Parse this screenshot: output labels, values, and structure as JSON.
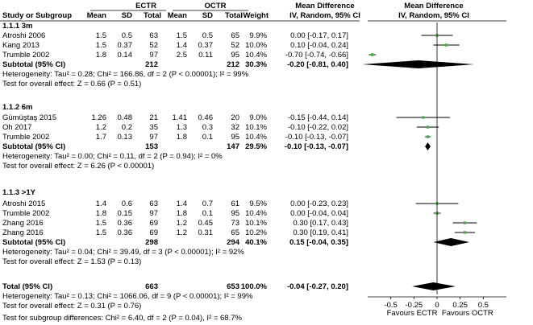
{
  "chart_data": {
    "type": "forest",
    "headers": {
      "group_ectr": "ECTR",
      "group_octr": "OCTR",
      "study": "Study or Subgroup",
      "mean": "Mean",
      "sd": "SD",
      "total": "Total",
      "weight": "Weight",
      "effect_title": "Mean Difference",
      "effect_sub": "IV, Random, 95% CI",
      "plot_title": "Mean Difference",
      "plot_sub": "IV, Random, 95% CI"
    },
    "subgroups": [
      {
        "name": "1.1.1 3m",
        "studies": [
          {
            "study": "Atroshi 2006",
            "m1": "1.5",
            "sd1": "0.5",
            "n1": "63",
            "m2": "1.5",
            "sd2": "0.5",
            "n2": "65",
            "weight": "9.9%",
            "ci_text": "0.00 [-0.17, 0.17]",
            "md": 0.0,
            "lo": -0.17,
            "hi": 0.17,
            "w": 9.9
          },
          {
            "study": "Kang 2013",
            "m1": "1.5",
            "sd1": "0.37",
            "n1": "52",
            "m2": "1.4",
            "sd2": "0.37",
            "n2": "52",
            "weight": "10.0%",
            "ci_text": "0.10 [-0.04, 0.24]",
            "md": 0.1,
            "lo": -0.04,
            "hi": 0.24,
            "w": 10.0
          },
          {
            "study": "Trumble 2002",
            "m1": "1.8",
            "sd1": "0.14",
            "n1": "97",
            "m2": "2.5",
            "sd2": "0.11",
            "n2": "95",
            "weight": "10.4%",
            "ci_text": "-0.70 [-0.74, -0.66]",
            "md": -0.7,
            "lo": -0.74,
            "hi": -0.66,
            "w": 10.4
          }
        ],
        "subtotal": {
          "label": "Subtotal (95% CI)",
          "n1": "212",
          "n2": "212",
          "weight": "30.3%",
          "ci_text": "-0.20 [-0.81, 0.40]",
          "md": -0.2,
          "lo": -0.81,
          "hi": 0.4
        },
        "heterogeneity": "Heterogeneity: Tau² = 0.28; Chi² = 166.86, df = 2 (P < 0.00001); I² = 99%",
        "overall_effect": "Test for overall effect: Z = 0.66 (P = 0.51)"
      },
      {
        "name": "1.1.2 6m",
        "studies": [
          {
            "study": "Gümüştaş 2015",
            "m1": "1.26",
            "sd1": "0.48",
            "n1": "21",
            "m2": "1.41",
            "sd2": "0.46",
            "n2": "20",
            "weight": "9.0%",
            "ci_text": "-0.15 [-0.44, 0.14]",
            "md": -0.15,
            "lo": -0.44,
            "hi": 0.14,
            "w": 9.0
          },
          {
            "study": "Oh 2017",
            "m1": "1.2",
            "sd1": "0.2",
            "n1": "35",
            "m2": "1.3",
            "sd2": "0.3",
            "n2": "32",
            "weight": "10.1%",
            "ci_text": "-0.10 [-0.22, 0.02]",
            "md": -0.1,
            "lo": -0.22,
            "hi": 0.02,
            "w": 10.1
          },
          {
            "study": "Trumble 2002",
            "m1": "1.7",
            "sd1": "0.13",
            "n1": "97",
            "m2": "1.8",
            "sd2": "0.1",
            "n2": "95",
            "weight": "10.4%",
            "ci_text": "-0.10 [-0.13, -0.07]",
            "md": -0.1,
            "lo": -0.13,
            "hi": -0.07,
            "w": 10.4
          }
        ],
        "subtotal": {
          "label": "Subtotal (95% CI)",
          "n1": "153",
          "n2": "147",
          "weight": "29.5%",
          "ci_text": "-0.10 [-0.13, -0.07]",
          "md": -0.1,
          "lo": -0.13,
          "hi": -0.07
        },
        "heterogeneity": "Heterogeneity: Tau² = 0.00; Chi² = 0.11, df = 2 (P = 0.94); I² = 0%",
        "overall_effect": "Test for overall effect: Z = 6.26 (P < 0.00001)"
      },
      {
        "name": "1.1.3 >1Y",
        "studies": [
          {
            "study": "Atroshi 2015",
            "m1": "1.4",
            "sd1": "0.6",
            "n1": "63",
            "m2": "1.4",
            "sd2": "0.7",
            "n2": "61",
            "weight": "9.5%",
            "ci_text": "0.00 [-0.23, 0.23]",
            "md": 0.0,
            "lo": -0.23,
            "hi": 0.23,
            "w": 9.5
          },
          {
            "study": "Trumble 2002",
            "m1": "1.8",
            "sd1": "0.15",
            "n1": "97",
            "m2": "1.8",
            "sd2": "0.1",
            "n2": "95",
            "weight": "10.4%",
            "ci_text": "0.00 [-0.04, 0.04]",
            "md": 0.0,
            "lo": -0.04,
            "hi": 0.04,
            "w": 10.4
          },
          {
            "study": "Zhang 2016",
            "m1": "1.5",
            "sd1": "0.36",
            "n1": "69",
            "m2": "1.2",
            "sd2": "0.45",
            "n2": "73",
            "weight": "10.1%",
            "ci_text": "0.30 [0.17, 0.43]",
            "md": 0.3,
            "lo": 0.17,
            "hi": 0.43,
            "w": 10.1
          },
          {
            "study": "Zhang 2016",
            "m1": "1.5",
            "sd1": "0.36",
            "n1": "69",
            "m2": "1.2",
            "sd2": "0.31",
            "n2": "65",
            "weight": "10.2%",
            "ci_text": "0.30 [0.19, 0.41]",
            "md": 0.3,
            "lo": 0.19,
            "hi": 0.41,
            "w": 10.2
          }
        ],
        "subtotal": {
          "label": "Subtotal (95% CI)",
          "n1": "298",
          "n2": "294",
          "weight": "40.1%",
          "ci_text": "0.15 [-0.04, 0.35]",
          "md": 0.15,
          "lo": -0.04,
          "hi": 0.35
        },
        "heterogeneity": "Heterogeneity: Tau² = 0.04; Chi² = 39.49, df = 3 (P < 0.00001); I² = 92%",
        "overall_effect": "Test for overall effect: Z = 1.53 (P = 0.13)"
      }
    ],
    "total": {
      "label": "Total (95% CI)",
      "n1": "663",
      "n2": "653",
      "weight": "100.0%",
      "ci_text": "-0.04 [-0.27, 0.20]",
      "md": -0.04,
      "lo": -0.27,
      "hi": 0.2,
      "heterogeneity": "Heterogeneity: Tau² = 0.13; Chi² = 1066.06, df = 9 (P < 0.00001); I² = 99%",
      "overall_effect": "Test for overall effect: Z = 0.31 (P = 0.76)",
      "subgroup_diff": "Test for subgroup differences: Chi² = 6.40, df = 2 (P = 0.04), I² = 68.7%"
    },
    "axis": {
      "xlim": [
        -0.75,
        0.75
      ],
      "ticks": [
        -0.5,
        -0.25,
        0,
        0.25,
        0.5
      ],
      "tick_labels": [
        "-0.5",
        "-0.25",
        "0",
        "0.25",
        "0.5"
      ],
      "favours_left": "Favours ECTR",
      "favours_right": "Favours OCTR"
    },
    "colors": {
      "marker": "#3cb43c",
      "line": "#000000"
    }
  }
}
